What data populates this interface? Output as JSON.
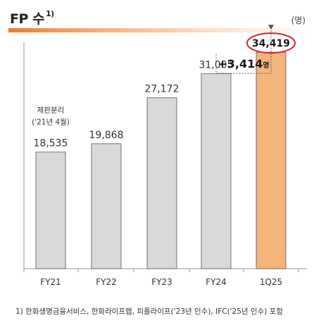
{
  "header": {
    "title": "FP 수",
    "title_note": "1)",
    "unit": "(명)"
  },
  "footnote": "1) 한화생명금융서비스, 한화라이프랩, 피플라이프('23년 인수), IFC('25년 인수) 포함",
  "colors": {
    "bar_default": "#d9d9d9",
    "bar_highlight": "#f4b47a",
    "bar_stroke": "#555555",
    "circle": "#d8222a",
    "title_rule": "#f07a2a"
  },
  "chart_data": {
    "type": "bar",
    "categories": [
      "FY21",
      "FY22",
      "FY23",
      "FY24",
      "1Q25"
    ],
    "values": [
      18535,
      19868,
      27172,
      31005,
      34419
    ],
    "value_labels": [
      "18,535",
      "19,868",
      "27,172",
      "31,005",
      "34,419"
    ],
    "highlight_index": 4,
    "annotations": {
      "fy21_note_line1": "제판분리",
      "fy21_note_line2": "('21년 4월)",
      "delta_value": "+3,414",
      "delta_unit": "명"
    },
    "ylim": [
      0,
      36000
    ],
    "grid": false,
    "legend": "none"
  }
}
